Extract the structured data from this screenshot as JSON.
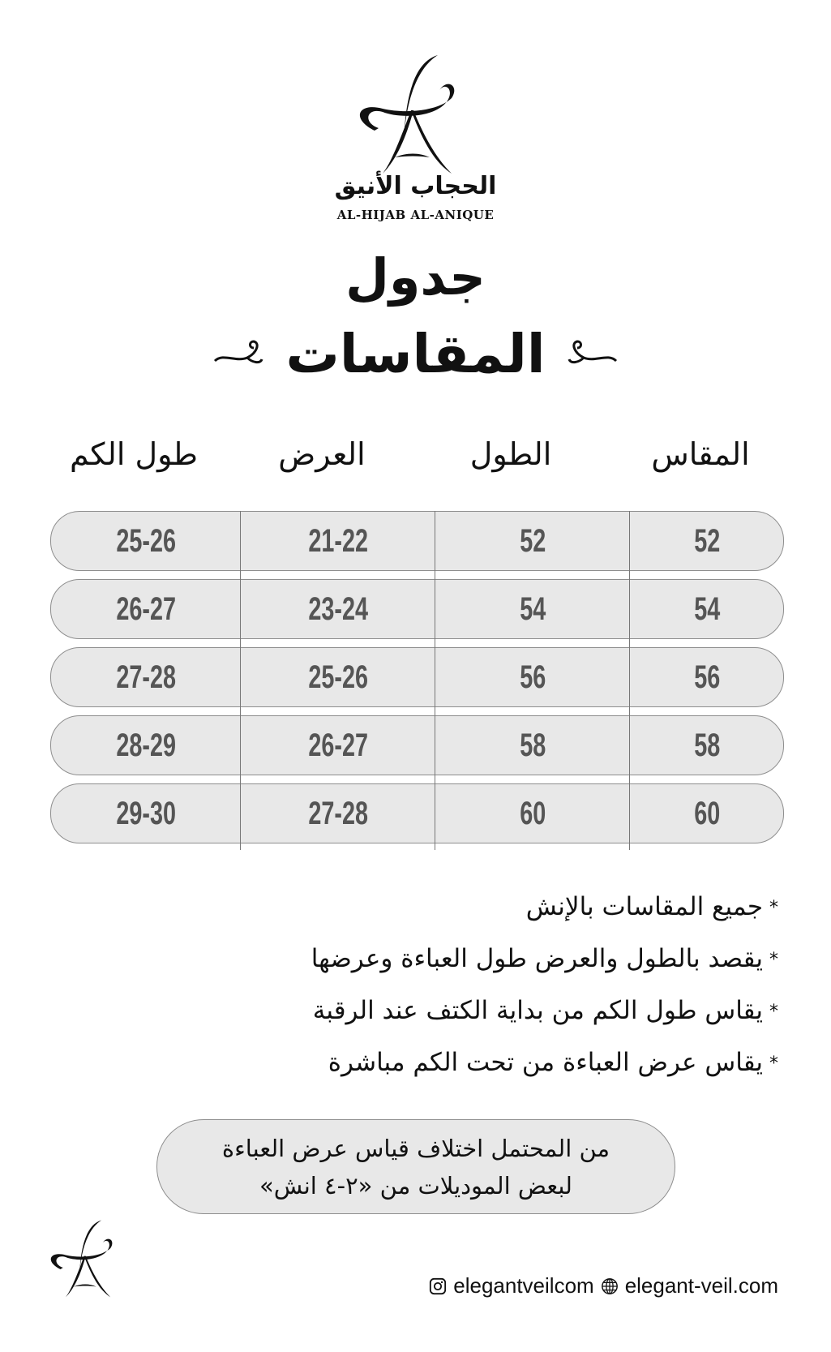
{
  "brand": {
    "name_ar": "الحجاب الأنيق",
    "name_en": "AL-HIJAB AL-ANIQUE"
  },
  "title": {
    "line1": "جدول",
    "line2": "المقاسات"
  },
  "table": {
    "headers": [
      "المقاس",
      "الطول",
      "العرض",
      "طول الكم"
    ],
    "rows": [
      [
        "52",
        "52",
        "21-22",
        "25-26"
      ],
      [
        "54",
        "54",
        "23-24",
        "26-27"
      ],
      [
        "56",
        "56",
        "25-26",
        "27-28"
      ],
      [
        "58",
        "58",
        "26-27",
        "28-29"
      ],
      [
        "60",
        "60",
        "27-28",
        "29-30"
      ]
    ]
  },
  "notes": [
    "جميع المقاسات بالإنش",
    "يقصد بالطول والعرض طول العباءة وعرضها",
    "يقاس طول الكم من بداية الكتف عند الرقبة",
    "يقاس عرض العباءة من تحت الكم مباشرة"
  ],
  "note_marker": "*",
  "callout": {
    "line1": "من المحتمل اختلاف قياس عرض العباءة",
    "line2": "لبعض الموديلات من «٢-٤ انش»"
  },
  "footer": {
    "instagram": "elegantveilcom",
    "website": "elegant-veil.com",
    "instagram_icon": "instagram-icon",
    "website_icon": "globe-icon"
  },
  "colors": {
    "row_bg": "#e8e8e8",
    "row_text": "#555555",
    "border": "#8e8e8e"
  }
}
